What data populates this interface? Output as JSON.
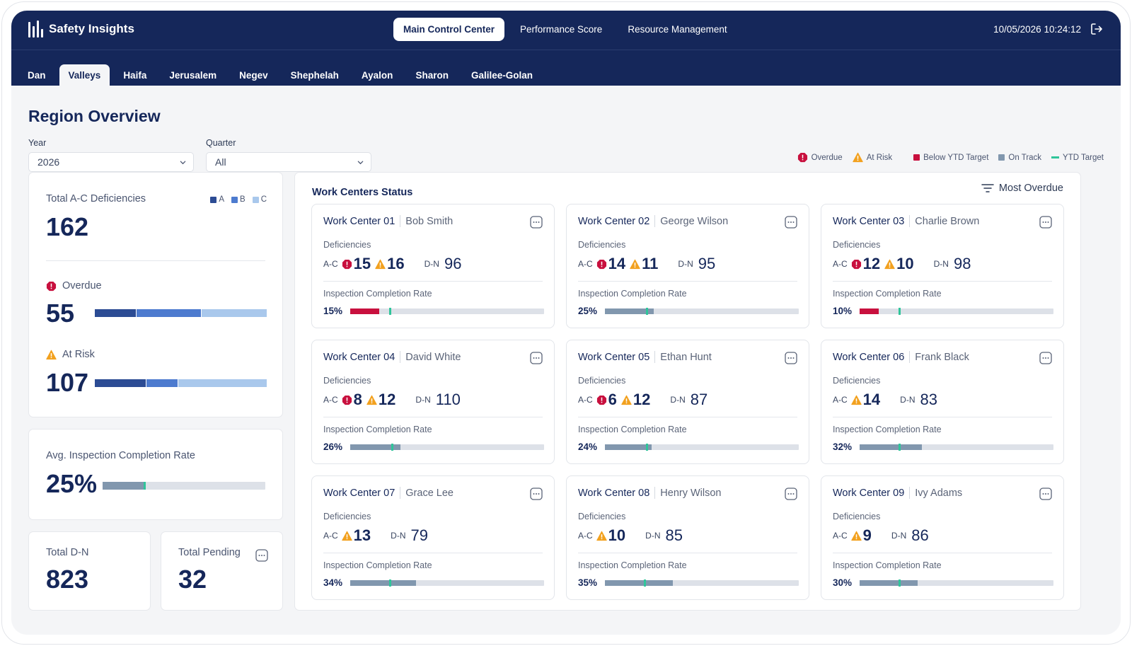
{
  "app": {
    "title": "Safety Insights",
    "datetime": "10/05/2026 10:24:12",
    "nav": [
      "Main Control Center",
      "Performance Score",
      "Resource Management"
    ],
    "active_nav": 0,
    "regions": [
      "Dan",
      "Valleys",
      "Haifa",
      "Jerusalem",
      "Negev",
      "Shephelah",
      "Ayalon",
      "Sharon",
      "Galilee-Golan"
    ],
    "active_region": 1
  },
  "page": {
    "title": "Region Overview",
    "year_label": "Year",
    "year_value": "2026",
    "quarter_label": "Quarter",
    "quarter_value": "All"
  },
  "legend": {
    "overdue": "Overdue",
    "at_risk": "At Risk",
    "below": "Below YTD Target",
    "on_track": "On Track",
    "ytd": "YTD Target"
  },
  "colors": {
    "navy": "#15275a",
    "overdue": "#c8103e",
    "at_risk": "#f2a11f",
    "below": "#c8103e",
    "on_track": "#8197ae",
    "ytd": "#2fc59a",
    "A": "#2c4c94",
    "B": "#4d7bcf",
    "C": "#a9c8ec"
  },
  "summary": {
    "total_label": "Total A-C Deficiencies",
    "total_value": "162",
    "abc_legend": [
      "A",
      "B",
      "C"
    ],
    "overdue_label": "Overdue",
    "overdue_value": "55",
    "overdue_split": [
      0.24,
      0.38,
      0.38
    ],
    "at_risk_label": "At Risk",
    "at_risk_value": "107",
    "at_risk_split": [
      0.3,
      0.18,
      0.52
    ],
    "avg_label": "Avg. Inspection Completion Rate",
    "avg_value": "25%",
    "avg_fraction": 0.25,
    "total_dn_label": "Total D-N",
    "total_dn_value": "823",
    "pending_label": "Total Pending",
    "pending_value": "32"
  },
  "work_centers": {
    "title": "Work Centers Status",
    "sort_label": "Most Overdue",
    "deficiencies_label": "Deficiencies",
    "ac_label": "A-C",
    "dn_label": "D-N",
    "rate_label": "Inspection Completion Rate",
    "items": [
      {
        "name": "Work Center 01",
        "manager": "Bob Smith",
        "overdue": "15",
        "at_risk": "16",
        "dn": "96",
        "rate": "15%",
        "fraction": 0.15,
        "status": "below",
        "target": 0.2
      },
      {
        "name": "Work Center 02",
        "manager": "George Wilson",
        "overdue": "14",
        "at_risk": "11",
        "dn": "95",
        "rate": "25%",
        "fraction": 0.25,
        "status": "on_track",
        "target": 0.21
      },
      {
        "name": "Work Center 03",
        "manager": "Charlie Brown",
        "overdue": "12",
        "at_risk": "10",
        "dn": "98",
        "rate": "10%",
        "fraction": 0.1,
        "status": "below",
        "target": 0.2
      },
      {
        "name": "Work Center 04",
        "manager": "David White",
        "overdue": "8",
        "at_risk": "12",
        "dn": "110",
        "rate": "26%",
        "fraction": 0.26,
        "status": "on_track",
        "target": 0.21
      },
      {
        "name": "Work Center 05",
        "manager": "Ethan Hunt",
        "overdue": "6",
        "at_risk": "12",
        "dn": "87",
        "rate": "24%",
        "fraction": 0.24,
        "status": "on_track",
        "target": 0.21
      },
      {
        "name": "Work Center 06",
        "manager": "Frank Black",
        "overdue": null,
        "at_risk": "14",
        "dn": "83",
        "rate": "32%",
        "fraction": 0.32,
        "status": "on_track",
        "target": 0.2
      },
      {
        "name": "Work Center 07",
        "manager": "Grace Lee",
        "overdue": null,
        "at_risk": "13",
        "dn": "79",
        "rate": "34%",
        "fraction": 0.34,
        "status": "on_track",
        "target": 0.2
      },
      {
        "name": "Work Center 08",
        "manager": "Henry Wilson",
        "overdue": null,
        "at_risk": "10",
        "dn": "85",
        "rate": "35%",
        "fraction": 0.35,
        "status": "on_track",
        "target": 0.2
      },
      {
        "name": "Work Center 09",
        "manager": "Ivy Adams",
        "overdue": null,
        "at_risk": "9",
        "dn": "86",
        "rate": "30%",
        "fraction": 0.3,
        "status": "on_track",
        "target": 0.2
      }
    ]
  }
}
